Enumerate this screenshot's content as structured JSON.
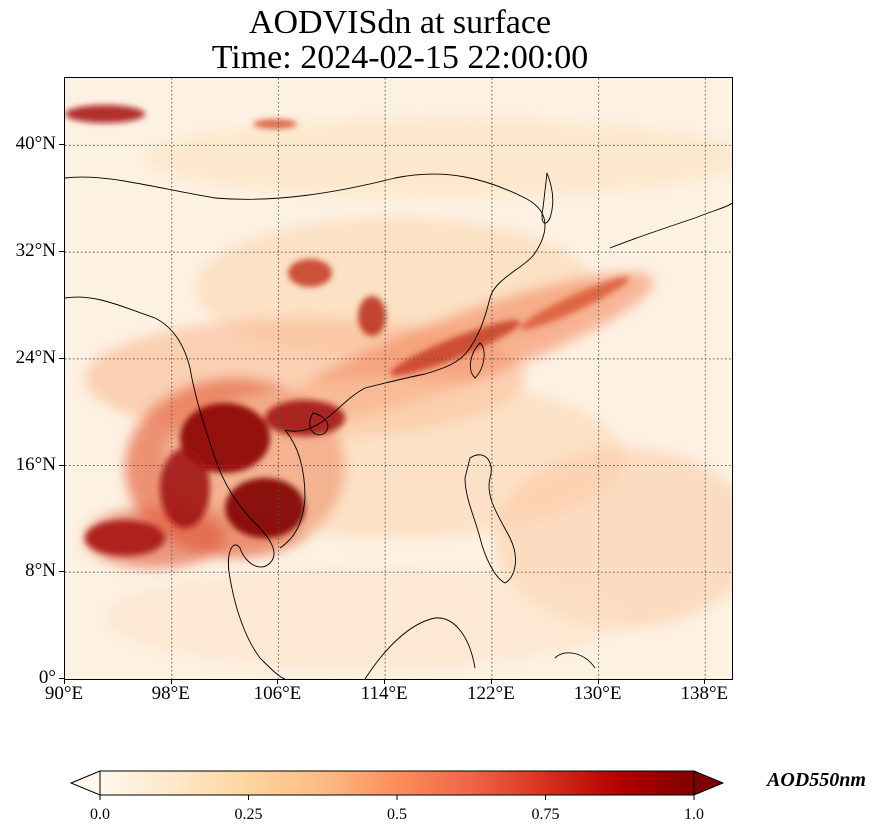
{
  "title": {
    "line1": "AODVISdn at surface",
    "line2": "Time: 2024-02-15 22:00:00"
  },
  "map": {
    "projection": "PlateCarree",
    "lon_range": [
      90,
      140
    ],
    "lat_range": [
      0,
      45
    ],
    "gridlines": "dotted",
    "lat_ticks": [
      {
        "value": 0,
        "label": "0°"
      },
      {
        "value": 8,
        "label": "8°N"
      },
      {
        "value": 16,
        "label": "16°N"
      },
      {
        "value": 24,
        "label": "24°N"
      },
      {
        "value": 32,
        "label": "32°N"
      },
      {
        "value": 40,
        "label": "40°N"
      }
    ],
    "lon_ticks": [
      {
        "value": 90,
        "label": "90°E"
      },
      {
        "value": 98,
        "label": "98°E"
      },
      {
        "value": 106,
        "label": "106°E"
      },
      {
        "value": 114,
        "label": "114°E"
      },
      {
        "value": 122,
        "label": "122°E"
      },
      {
        "value": 130,
        "label": "130°E"
      },
      {
        "value": 138,
        "label": "138°E"
      }
    ],
    "features": [
      "coastlines",
      "country borders"
    ]
  },
  "colorbar": {
    "label": "AOD550nm",
    "colormap": "OrRd",
    "range": [
      0.0,
      1.0
    ],
    "extend": "both",
    "ticks": [
      {
        "value": 0.0,
        "label": "0.0"
      },
      {
        "value": 0.25,
        "label": "0.25"
      },
      {
        "value": 0.5,
        "label": "0.5"
      },
      {
        "value": 0.75,
        "label": "0.75"
      },
      {
        "value": 1.0,
        "label": "1.0"
      }
    ],
    "colors": [
      "#fff7ec",
      "#fee8c8",
      "#fdd49e",
      "#fdbb84",
      "#fc8d59",
      "#ef6548",
      "#d7301f",
      "#b30000",
      "#7f0000"
    ]
  }
}
